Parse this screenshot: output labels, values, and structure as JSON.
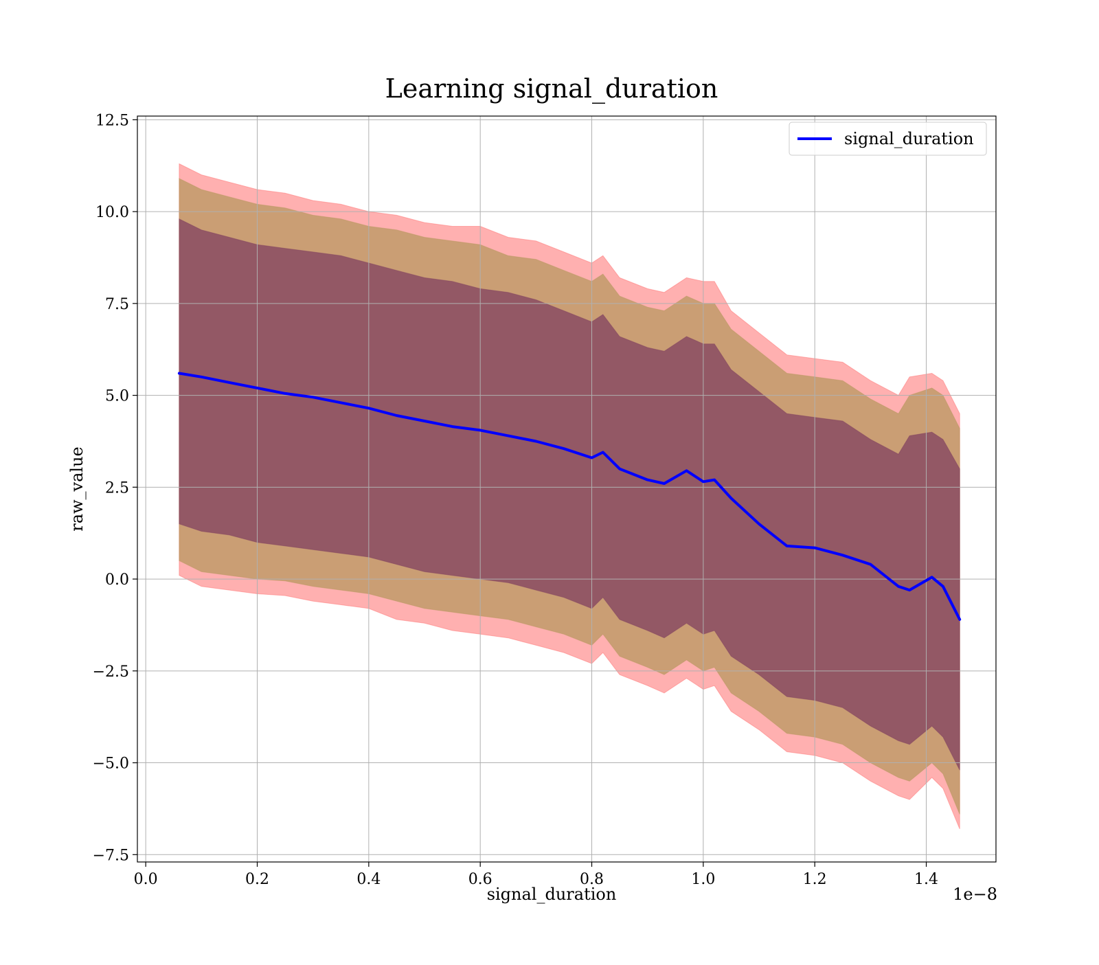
{
  "chart_data": {
    "type": "line",
    "title": "Learning signal_duration",
    "xlabel": "signal_duration",
    "ylabel": "raw_value",
    "x_offset_label": "1e−8",
    "xlim": [
      -0.015,
      1.525
    ],
    "ylim": [
      -7.7,
      12.6
    ],
    "x_ticks": [
      0.0,
      0.2,
      0.4,
      0.6,
      0.8,
      1.0,
      1.2,
      1.4
    ],
    "x_tick_labels": [
      "0.0",
      "0.2",
      "0.4",
      "0.6",
      "0.8",
      "1.0",
      "1.2",
      "1.4"
    ],
    "y_ticks": [
      -7.5,
      -5.0,
      -2.5,
      0.0,
      2.5,
      5.0,
      7.5,
      10.0,
      12.5
    ],
    "y_tick_labels": [
      "−7.5",
      "−5.0",
      "−2.5",
      "0.0",
      "2.5",
      "5.0",
      "7.5",
      "10.0",
      "12.5"
    ],
    "grid": true,
    "legend_position": "top-right",
    "x": [
      0.06,
      0.1,
      0.15,
      0.2,
      0.25,
      0.3,
      0.35,
      0.4,
      0.45,
      0.5,
      0.55,
      0.6,
      0.65,
      0.7,
      0.75,
      0.8,
      0.82,
      0.85,
      0.9,
      0.93,
      0.97,
      1.0,
      1.02,
      1.05,
      1.1,
      1.15,
      1.2,
      1.25,
      1.3,
      1.35,
      1.37,
      1.41,
      1.43,
      1.46
    ],
    "series": [
      {
        "name": "signal_duration",
        "color": "#0000ff",
        "values": [
          5.6,
          5.5,
          5.35,
          5.2,
          5.05,
          4.95,
          4.8,
          4.65,
          4.45,
          4.3,
          4.15,
          4.05,
          3.9,
          3.75,
          3.55,
          3.3,
          3.45,
          3.0,
          2.7,
          2.6,
          2.95,
          2.65,
          2.7,
          2.2,
          1.5,
          0.9,
          0.85,
          0.65,
          0.4,
          -0.2,
          -0.3,
          0.05,
          -0.2,
          -1.1
        ]
      }
    ],
    "bands": [
      {
        "color": "#ff7070",
        "upper": [
          11.3,
          11.0,
          10.8,
          10.6,
          10.5,
          10.3,
          10.2,
          10.0,
          9.9,
          9.7,
          9.6,
          9.6,
          9.3,
          9.2,
          8.9,
          8.6,
          8.8,
          8.2,
          7.9,
          7.8,
          8.2,
          8.1,
          8.1,
          7.3,
          6.7,
          6.1,
          6.0,
          5.9,
          5.4,
          5.0,
          5.5,
          5.6,
          5.4,
          4.5
        ],
        "lower": [
          0.1,
          -0.2,
          -0.3,
          -0.4,
          -0.45,
          -0.6,
          -0.7,
          -0.8,
          -1.1,
          -1.2,
          -1.4,
          -1.5,
          -1.6,
          -1.8,
          -2.0,
          -2.3,
          -2.0,
          -2.6,
          -2.9,
          -3.1,
          -2.7,
          -3.0,
          -2.9,
          -3.6,
          -4.1,
          -4.7,
          -4.8,
          -5.0,
          -5.5,
          -5.9,
          -6.0,
          -5.4,
          -5.7,
          -6.8
        ]
      },
      {
        "color": "#b89860",
        "upper": [
          10.9,
          10.6,
          10.4,
          10.2,
          10.1,
          9.9,
          9.8,
          9.6,
          9.5,
          9.3,
          9.2,
          9.1,
          8.8,
          8.7,
          8.4,
          8.1,
          8.3,
          7.7,
          7.4,
          7.3,
          7.7,
          7.5,
          7.5,
          6.8,
          6.2,
          5.6,
          5.5,
          5.4,
          4.9,
          4.5,
          5.0,
          5.2,
          5.0,
          4.1
        ],
        "lower": [
          0.5,
          0.2,
          0.1,
          0.0,
          -0.05,
          -0.2,
          -0.3,
          -0.4,
          -0.6,
          -0.8,
          -0.9,
          -1.0,
          -1.1,
          -1.3,
          -1.5,
          -1.8,
          -1.5,
          -2.1,
          -2.4,
          -2.6,
          -2.2,
          -2.5,
          -2.4,
          -3.1,
          -3.6,
          -4.2,
          -4.3,
          -4.5,
          -5.0,
          -5.4,
          -5.5,
          -5.0,
          -5.3,
          -6.4
        ]
      },
      {
        "color": "#804060",
        "upper": [
          9.8,
          9.5,
          9.3,
          9.1,
          9.0,
          8.9,
          8.8,
          8.6,
          8.4,
          8.2,
          8.1,
          7.9,
          7.8,
          7.6,
          7.3,
          7.0,
          7.2,
          6.6,
          6.3,
          6.2,
          6.6,
          6.4,
          6.4,
          5.7,
          5.1,
          4.5,
          4.4,
          4.3,
          3.8,
          3.4,
          3.9,
          4.0,
          3.8,
          3.0
        ],
        "lower": [
          1.5,
          1.3,
          1.2,
          1.0,
          0.9,
          0.8,
          0.7,
          0.6,
          0.4,
          0.2,
          0.1,
          0.0,
          -0.1,
          -0.3,
          -0.5,
          -0.8,
          -0.5,
          -1.1,
          -1.4,
          -1.6,
          -1.2,
          -1.5,
          -1.4,
          -2.1,
          -2.6,
          -3.2,
          -3.3,
          -3.5,
          -4.0,
          -4.4,
          -4.5,
          -4.0,
          -4.3,
          -5.2
        ]
      }
    ]
  }
}
